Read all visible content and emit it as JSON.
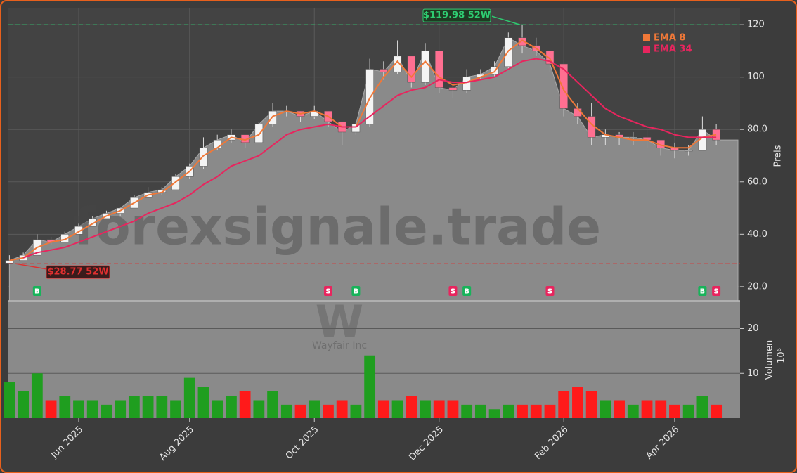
{
  "chart_data": {
    "type": "candlestick",
    "categories": [
      null,
      null,
      null,
      null,
      null,
      "Jun 2025",
      null,
      null,
      null,
      null,
      null,
      null,
      null,
      "Aug 2025",
      null,
      null,
      null,
      null,
      null,
      null,
      null,
      null,
      "Oct 2025",
      null,
      null,
      null,
      null,
      null,
      null,
      null,
      null,
      "Dec 2025",
      null,
      null,
      null,
      null,
      null,
      null,
      null,
      null,
      "Feb 2026",
      null,
      null,
      null,
      null,
      null,
      null,
      null,
      "Apr 2026",
      null,
      null,
      null
    ],
    "open": [
      29,
      30,
      32,
      38,
      37,
      40,
      43,
      46,
      48,
      50,
      54,
      56,
      57,
      62,
      66,
      73,
      76,
      78,
      75,
      82,
      87,
      87,
      85,
      87,
      83,
      79,
      82,
      103,
      102,
      108,
      98,
      110,
      96,
      95,
      100,
      101,
      104,
      115,
      112,
      110,
      105,
      88,
      85,
      77,
      78,
      77,
      77,
      76,
      73,
      72,
      72,
      80
    ],
    "high": [
      32,
      33,
      40,
      39,
      41,
      44,
      47,
      49,
      50,
      55,
      58,
      58,
      63,
      67,
      77,
      78,
      80,
      78,
      83,
      90,
      89,
      87,
      89,
      87,
      83,
      83,
      107,
      106,
      114,
      108,
      113,
      110,
      97,
      103,
      103,
      106,
      117,
      120,
      115,
      110,
      105,
      90,
      90,
      80,
      79,
      79,
      80,
      76,
      75,
      74,
      85,
      82
    ],
    "low": [
      29,
      30,
      32,
      36,
      37,
      40,
      43,
      46,
      47,
      50,
      54,
      55,
      57,
      61,
      65,
      72,
      75,
      73,
      75,
      81,
      85,
      83,
      84,
      81,
      74,
      78,
      81,
      99,
      101,
      96,
      97,
      94,
      92,
      94,
      99,
      100,
      103,
      109,
      108,
      102,
      85,
      82,
      74,
      74,
      74,
      74,
      73,
      70,
      69,
      70,
      72,
      74
    ],
    "close": [
      30,
      32,
      38,
      37,
      40,
      43,
      46,
      48,
      50,
      54,
      56,
      57,
      62,
      66,
      73,
      76,
      78,
      75,
      82,
      87,
      87,
      85,
      87,
      83,
      79,
      82,
      103,
      102,
      108,
      98,
      110,
      96,
      95,
      100,
      101,
      104,
      115,
      112,
      110,
      105,
      88,
      85,
      77,
      78,
      77,
      77,
      76,
      73,
      72,
      72,
      80,
      76
    ],
    "up_color": "#f4f4f4",
    "down_color": "#ff6f91",
    "area_color": "#8a8a8a",
    "series": [
      {
        "name": "EMA 8",
        "color": "#f07838",
        "values": [
          30,
          31,
          35,
          37,
          38,
          41,
          44,
          47,
          49,
          52,
          55,
          56,
          60,
          64,
          70,
          73,
          77,
          76,
          78,
          85,
          87,
          86,
          87,
          85,
          81,
          81,
          92,
          100,
          106,
          100,
          106,
          100,
          97,
          98,
          100,
          102,
          110,
          114,
          111,
          107,
          95,
          88,
          82,
          78,
          77,
          76,
          76,
          74,
          73,
          73,
          77,
          78
        ]
      },
      {
        "name": "EMA 34",
        "color": "#e8255e",
        "values": [
          null,
          31,
          33,
          34,
          35,
          37,
          39,
          41,
          43,
          45,
          48,
          50,
          52,
          55,
          59,
          62,
          66,
          68,
          70,
          74,
          78,
          80,
          81,
          82,
          81,
          81,
          85,
          89,
          93,
          95,
          96,
          99,
          98,
          98,
          99,
          100,
          103,
          106,
          107,
          106,
          103,
          98,
          93,
          88,
          85,
          83,
          81,
          80,
          78,
          77,
          77,
          77
        ]
      }
    ],
    "ylim": [
      14.6,
      126.2
    ],
    "yticks": [
      {
        "value": 20,
        "label": "20.0"
      },
      {
        "value": 40,
        "label": "40.0"
      },
      {
        "value": 60,
        "label": "60.0"
      },
      {
        "value": 80,
        "label": "80.0"
      },
      {
        "value": 100,
        "label": "100"
      },
      {
        "value": 120,
        "label": "120"
      }
    ],
    "ylabel": "Preis",
    "grid": true,
    "high_52w": {
      "value": 119.98,
      "label": "$119.98 52W",
      "color": "#2ecc71"
    },
    "low_52w": {
      "value": 28.77,
      "label": "$28.77 52W",
      "color": "#e03030"
    },
    "signals": [
      {
        "label": "B",
        "index": 2
      },
      {
        "label": "S",
        "index": 23
      },
      {
        "label": "B",
        "index": 25
      },
      {
        "label": "S",
        "index": 32
      },
      {
        "label": "B",
        "index": 33
      },
      {
        "label": "S",
        "index": 39
      },
      {
        "label": "B",
        "index": 50
      },
      {
        "label": "S",
        "index": 51
      }
    ],
    "watermark": "forexsignale.trade",
    "logo_letter": "W",
    "company": "Wayfair Inc",
    "volume": {
      "values": [
        8,
        6,
        10,
        4,
        5,
        4,
        4,
        3,
        4,
        5,
        5,
        5,
        4,
        9,
        7,
        4,
        5,
        6,
        4,
        6,
        3,
        3,
        4,
        3,
        4,
        3,
        14,
        4,
        4,
        5,
        4,
        4,
        4,
        3,
        3,
        2,
        3,
        3,
        3,
        3,
        6,
        7,
        6,
        4,
        4,
        3,
        4,
        4,
        3,
        3,
        5,
        3
      ],
      "ylim": [
        0,
        26.2
      ],
      "yticks": [
        10,
        20
      ],
      "ylabel": "Volumen",
      "scale_label": "10⁶",
      "up_color": "#1f9e1f",
      "down_color": "#ff1a1a"
    }
  }
}
